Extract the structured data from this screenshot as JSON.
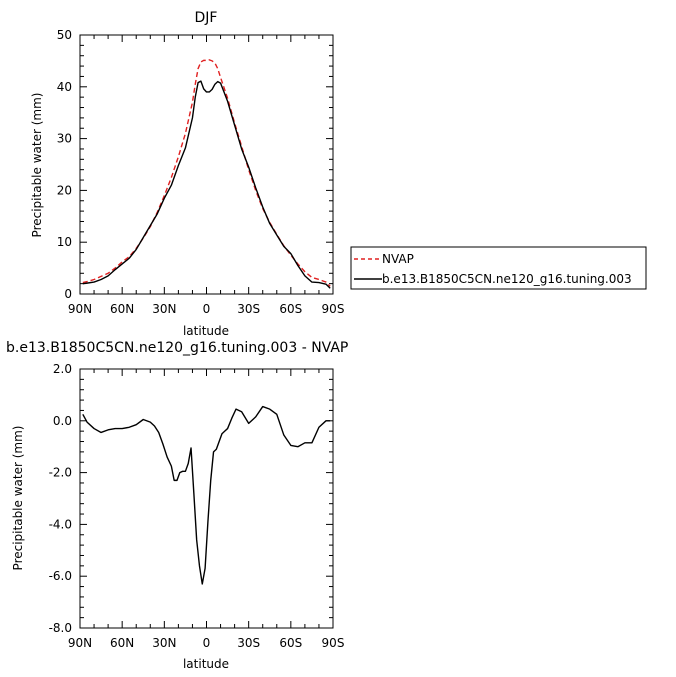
{
  "chart_data": [
    {
      "type": "line",
      "title": "DJF",
      "xlabel": "latitude",
      "ylabel": "Precipitable water  (mm)",
      "xlim": [
        90,
        -90
      ],
      "ylim": [
        0,
        50
      ],
      "xticks": [
        "90N",
        "60N",
        "30N",
        "0",
        "30S",
        "60S",
        "90S"
      ],
      "yticks": [
        "0",
        "10",
        "20",
        "30",
        "40",
        "50"
      ],
      "x": [
        88,
        85,
        80,
        75,
        70,
        65,
        60,
        55,
        50,
        45,
        40,
        35,
        30,
        25,
        20,
        15,
        10,
        8,
        6,
        4,
        2,
        0,
        -2,
        -4,
        -6,
        -8,
        -10,
        -15,
        -20,
        -25,
        -30,
        -35,
        -40,
        -45,
        -50,
        -55,
        -60,
        -65,
        -70,
        -75,
        -80,
        -85,
        -88
      ],
      "legend": {
        "placement": "right"
      },
      "series": [
        {
          "name": "NVAP",
          "color": "#e02020",
          "dash": "dashed",
          "values": [
            2.2,
            2.4,
            2.8,
            3.4,
            4.0,
            5.0,
            6.2,
            7.2,
            8.8,
            10.8,
            13.0,
            15.8,
            19.0,
            22.5,
            26.5,
            31.0,
            37.0,
            40.5,
            43.5,
            44.8,
            45.1,
            45.1,
            45.2,
            45.0,
            44.6,
            43.5,
            41.8,
            37.8,
            33.0,
            28.5,
            24.0,
            20.0,
            16.5,
            13.8,
            11.5,
            9.3,
            7.5,
            5.8,
            4.3,
            3.2,
            2.8,
            2.3,
            1.5
          ]
        },
        {
          "name": "b.e13.B1850C5CN.ne120_g16.tuning.003",
          "color": "#000000",
          "dash": "solid",
          "values": [
            2.0,
            2.1,
            2.3,
            2.8,
            3.5,
            4.7,
            5.8,
            6.9,
            8.6,
            10.9,
            13.2,
            15.5,
            18.5,
            21.0,
            24.8,
            28.2,
            34.0,
            38.0,
            40.8,
            41.1,
            39.6,
            39.0,
            39.0,
            39.5,
            40.5,
            41.0,
            40.7,
            37.2,
            32.6,
            28.0,
            24.5,
            20.5,
            16.8,
            13.6,
            11.4,
            9.2,
            7.8,
            5.5,
            3.5,
            2.3,
            2.2,
            1.9,
            1.1
          ]
        }
      ]
    },
    {
      "type": "line",
      "title": "b.e13.B1850C5CN.ne120_g16.tuning.003 - NVAP",
      "xlabel": "latitude",
      "ylabel": "Precipitable water  (mm)",
      "xlim": [
        90,
        -90
      ],
      "ylim": [
        -8,
        2
      ],
      "xticks": [
        "90N",
        "60N",
        "30N",
        "0",
        "30S",
        "60S",
        "90S"
      ],
      "yticks": [
        "2.0",
        "0.0",
        "-2.0",
        "-4.0",
        "-6.0",
        "-8.0"
      ],
      "x": [
        88,
        85,
        80,
        75,
        70,
        65,
        60,
        55,
        50,
        45,
        40,
        37,
        34,
        31,
        28,
        25,
        23,
        21,
        19,
        17,
        15,
        13,
        11,
        9,
        7,
        5,
        3,
        1,
        -1,
        -3,
        -5,
        -7,
        -9,
        -11,
        -13,
        -15,
        -18,
        -21,
        -25,
        -30,
        -35,
        -40,
        -45,
        -50,
        -55,
        -60,
        -65,
        -70,
        -75,
        -80,
        -85,
        -88
      ],
      "series": [
        {
          "name": "",
          "color": "#000000",
          "dash": "solid",
          "values": [
            0.25,
            -0.05,
            -0.3,
            -0.45,
            -0.35,
            -0.3,
            -0.3,
            -0.25,
            -0.15,
            0.05,
            -0.05,
            -0.2,
            -0.45,
            -0.9,
            -1.4,
            -1.75,
            -2.3,
            -2.3,
            -2.0,
            -1.95,
            -1.95,
            -1.65,
            -1.05,
            -2.8,
            -4.6,
            -5.6,
            -6.3,
            -5.7,
            -3.9,
            -2.3,
            -1.2,
            -1.1,
            -0.8,
            -0.5,
            -0.4,
            -0.3,
            0.1,
            0.45,
            0.35,
            -0.1,
            0.15,
            0.55,
            0.45,
            0.25,
            -0.55,
            -0.95,
            -1.0,
            -0.85,
            -0.85,
            -0.25,
            0,
            0
          ]
        }
      ]
    }
  ]
}
